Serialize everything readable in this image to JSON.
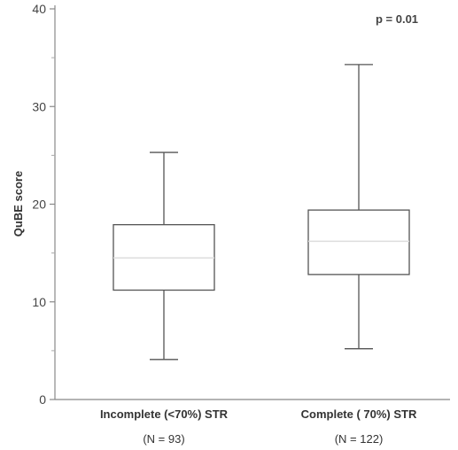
{
  "chart_data": {
    "type": "box",
    "ylabel": "QuBE score",
    "ylim": [
      0,
      40
    ],
    "yticks": [
      0,
      10,
      20,
      30,
      40
    ],
    "grid": false,
    "annotation": "p = 0.01",
    "categories": [
      {
        "label": "Incomplete (<70%) STR",
        "n_label": "(N = 93)",
        "min": 4.1,
        "q1": 11.2,
        "median": 14.5,
        "q3": 17.9,
        "max": 25.3
      },
      {
        "label": "Complete ( 70%) STR",
        "n_label": "(N = 122)",
        "min": 5.2,
        "q1": 12.8,
        "median": 16.2,
        "q3": 19.4,
        "max": 34.3
      }
    ]
  }
}
